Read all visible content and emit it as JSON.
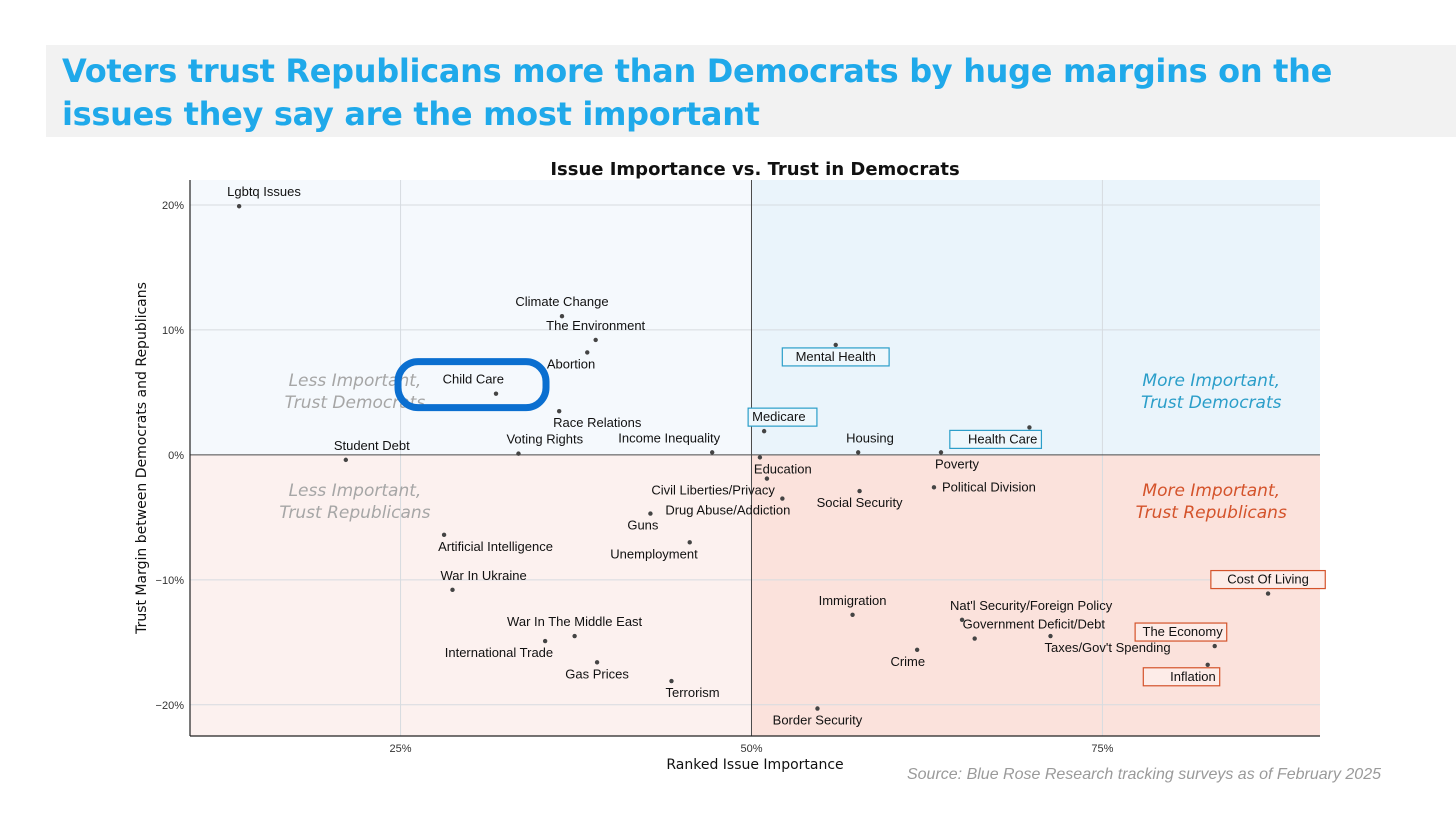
{
  "headline": "Voters trust Republicans more than Democrats by huge margins on the issues they say are the most important",
  "source": "Source: Blue Rose Research tracking surveys as of February 2025",
  "chart_data": {
    "type": "scatter",
    "title": "Issue Importance vs. Trust in Democrats",
    "xlabel": "Ranked Issue Importance",
    "ylabel": "Trust Margin between Democrats and Republicans",
    "xlim": [
      0.1,
      0.905
    ],
    "ylim": [
      -0.225,
      0.22
    ],
    "x_ticks": [
      0.25,
      0.5,
      0.75
    ],
    "x_tick_labels": [
      "25%",
      "50%",
      "75%"
    ],
    "y_ticks": [
      0.2,
      0.1,
      0.0,
      -0.1,
      -0.2
    ],
    "y_tick_labels": [
      "20%",
      "10%",
      "0%",
      "−10%",
      "−20%"
    ],
    "grid": true,
    "quadrant_labels": [
      {
        "text": [
          "Less Important,",
          "Trust Democrats"
        ],
        "quadrant": "top-left",
        "color": "#a6a6a6"
      },
      {
        "text": [
          "More Important,",
          "Trust Democrats"
        ],
        "quadrant": "top-right",
        "color": "#2b9ec9"
      },
      {
        "text": [
          "Less Important,",
          "Trust Republicans"
        ],
        "quadrant": "bottom-left",
        "color": "#a6a6a6"
      },
      {
        "text": [
          "More Important,",
          "Trust Republicans"
        ],
        "quadrant": "bottom-right",
        "color": "#d4532b"
      }
    ],
    "colors": {
      "dem_bg": "#eaf4fb",
      "dem_bg_light": "#f5f9fd",
      "rep_bg": "#fbe2dc",
      "rep_bg_light": "#fcf1ef",
      "dem_box": "#2b9ec9",
      "rep_box": "#d4532b",
      "point": "#444444",
      "highlight_circle": "#0b6fd0"
    },
    "points": [
      {
        "label": "Lgbtq Issues",
        "x": 0.135,
        "y": 0.199,
        "label_pos": "above-right"
      },
      {
        "label": "Climate Change",
        "x": 0.365,
        "y": 0.111,
        "label_pos": "above"
      },
      {
        "label": "The Environment",
        "x": 0.389,
        "y": 0.092,
        "label_pos": "above"
      },
      {
        "label": "Abortion",
        "x": 0.383,
        "y": 0.082,
        "label_pos": "below-left"
      },
      {
        "label": "Child Care",
        "x": 0.318,
        "y": 0.049,
        "label_pos": "above-left",
        "highlight": "circled"
      },
      {
        "label": "Race Relations",
        "x": 0.363,
        "y": 0.035,
        "label_pos": "below-right"
      },
      {
        "label": "Voting Rights",
        "x": 0.334,
        "y": 0.001,
        "label_pos": "above-right"
      },
      {
        "label": "Income Inequality",
        "x": 0.472,
        "y": 0.002,
        "label_pos": "above-left"
      },
      {
        "label": "Student Debt",
        "x": 0.211,
        "y": -0.004,
        "label_pos": "above-right"
      },
      {
        "label": "Mental Health",
        "x": 0.56,
        "y": 0.088,
        "label_pos": "below",
        "box": "dem"
      },
      {
        "label": "Medicare",
        "x": 0.509,
        "y": 0.019,
        "label_pos": "above-right",
        "box": "dem"
      },
      {
        "label": "Health Care",
        "x": 0.698,
        "y": 0.022,
        "label_pos": "below-left",
        "box": "dem"
      },
      {
        "label": "Housing",
        "x": 0.576,
        "y": 0.002,
        "label_pos": "above-right"
      },
      {
        "label": "Poverty",
        "x": 0.635,
        "y": 0.002,
        "label_pos": "below-right"
      },
      {
        "label": "Education",
        "x": 0.506,
        "y": -0.002,
        "label_pos": "below-right"
      },
      {
        "label": "Civil Liberties/Privacy",
        "x": 0.511,
        "y": -0.019,
        "label_pos": "below-left"
      },
      {
        "label": "Political Division",
        "x": 0.63,
        "y": -0.026,
        "label_pos": "right"
      },
      {
        "label": "Social Security",
        "x": 0.577,
        "y": -0.029,
        "label_pos": "below"
      },
      {
        "label": "Drug Abuse/Addiction",
        "x": 0.522,
        "y": -0.035,
        "label_pos": "below-left"
      },
      {
        "label": "Guns",
        "x": 0.428,
        "y": -0.047,
        "label_pos": "below-left"
      },
      {
        "label": "Unemployment",
        "x": 0.456,
        "y": -0.07,
        "label_pos": "below-left"
      },
      {
        "label": "Artificial Intelligence",
        "x": 0.281,
        "y": -0.064,
        "label_pos": "below-right"
      },
      {
        "label": "War In Ukraine",
        "x": 0.287,
        "y": -0.108,
        "label_pos": "above-right"
      },
      {
        "label": "Cost Of Living",
        "x": 0.868,
        "y": -0.111,
        "label_pos": "above",
        "box": "rep"
      },
      {
        "label": "Immigration",
        "x": 0.572,
        "y": -0.128,
        "label_pos": "above"
      },
      {
        "label": "Nat'l Security/Foreign Policy",
        "x": 0.65,
        "y": -0.132,
        "label_pos": "above-right"
      },
      {
        "label": "Government Deficit/Debt",
        "x": 0.659,
        "y": -0.147,
        "label_pos": "above-right"
      },
      {
        "label": "Taxes/Gov't Spending",
        "x": 0.713,
        "y": -0.145,
        "label_pos": "below-right"
      },
      {
        "label": "Crime",
        "x": 0.618,
        "y": -0.156,
        "label_pos": "below-left"
      },
      {
        "label": "The Economy",
        "x": 0.83,
        "y": -0.153,
        "label_pos": "above-left",
        "box": "rep"
      },
      {
        "label": "Inflation",
        "x": 0.825,
        "y": -0.168,
        "label_pos": "below-left",
        "box": "rep"
      },
      {
        "label": "War In The Middle East",
        "x": 0.374,
        "y": -0.145,
        "label_pos": "above"
      },
      {
        "label": "International Trade",
        "x": 0.353,
        "y": -0.149,
        "label_pos": "below-left"
      },
      {
        "label": "Gas Prices",
        "x": 0.39,
        "y": -0.166,
        "label_pos": "below"
      },
      {
        "label": "Terrorism",
        "x": 0.443,
        "y": -0.181,
        "label_pos": "below-right"
      },
      {
        "label": "Border Security",
        "x": 0.547,
        "y": -0.203,
        "label_pos": "below"
      }
    ]
  }
}
